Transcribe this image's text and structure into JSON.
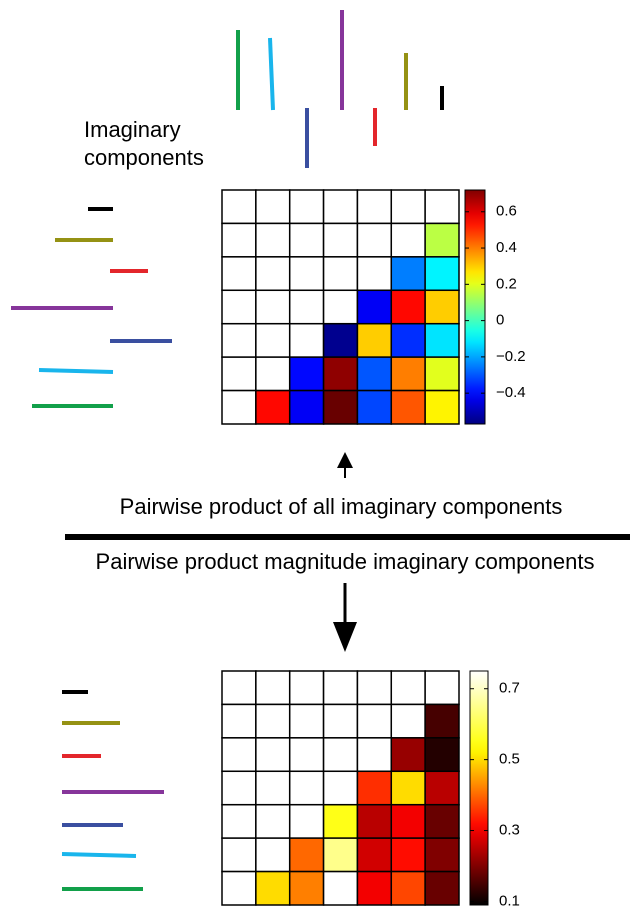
{
  "annotation": "Imaginary components",
  "caption_top": "Pairwise product of all imaginary components",
  "caption_bottom": "Pairwise product magnitude imaginary components",
  "chart_data": [
    {
      "type": "heatmap",
      "colormap": "jet",
      "values": [
        [
          null,
          null,
          null,
          null,
          null,
          null,
          null
        ],
        [
          null,
          null,
          null,
          null,
          null,
          null,
          0.15
        ],
        [
          null,
          null,
          null,
          null,
          null,
          -0.25,
          -0.1
        ],
        [
          null,
          null,
          null,
          null,
          -0.42,
          0.55,
          0.3
        ],
        [
          null,
          null,
          null,
          -0.55,
          0.3,
          -0.35,
          -0.12
        ],
        [
          null,
          null,
          -0.4,
          0.7,
          -0.3,
          0.4,
          0.2
        ],
        [
          null,
          0.55,
          -0.42,
          0.75,
          -0.32,
          0.45,
          0.25
        ]
      ],
      "clim": [
        -0.57,
        0.72
      ],
      "cticks": [
        {
          "value": -0.4,
          "label": "−0.4"
        },
        {
          "value": -0.2,
          "label": "−0.2"
        },
        0,
        0.2,
        0.4,
        0.6
      ]
    },
    {
      "type": "heatmap",
      "colormap": "hot",
      "values": [
        [
          null,
          null,
          null,
          null,
          null,
          null,
          null
        ],
        [
          null,
          null,
          null,
          null,
          null,
          null,
          0.15
        ],
        [
          null,
          null,
          null,
          null,
          null,
          0.22,
          0.12
        ],
        [
          null,
          null,
          null,
          null,
          0.35,
          0.5,
          0.25
        ],
        [
          null,
          null,
          null,
          0.55,
          0.25,
          0.3,
          0.18
        ],
        [
          null,
          null,
          0.4,
          0.65,
          0.27,
          0.32,
          0.2
        ],
        [
          null,
          0.5,
          0.42,
          0.75,
          0.3,
          0.37,
          0.18
        ]
      ],
      "clim": [
        0.09,
        0.75
      ],
      "cticks": [
        0.1,
        0.3,
        0.5,
        0.7
      ]
    }
  ]
}
